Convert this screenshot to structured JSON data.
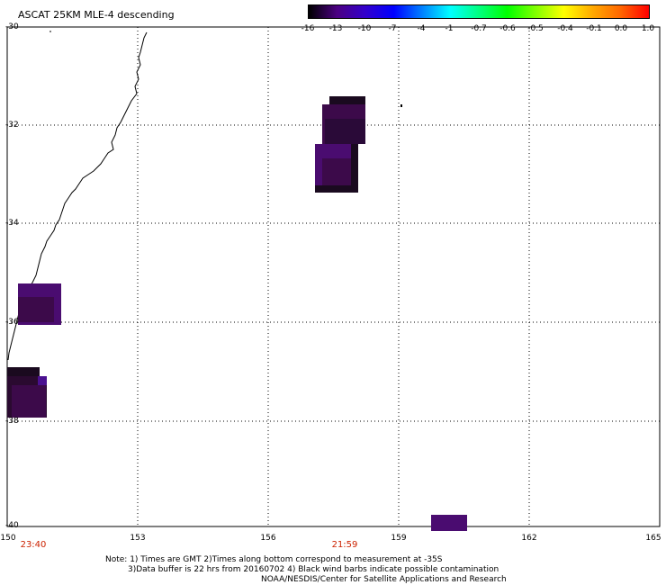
{
  "title": "ASCAT 25KM MLE-4 descending",
  "colorbar": {
    "labels": [
      "-16",
      "-13",
      "-10",
      "-7",
      "-4",
      "-1",
      "-0.7",
      "-0.6",
      "-0.5",
      "-0.4",
      "-0.1",
      "0.0",
      "1.0"
    ],
    "colors": [
      "#000000",
      "#4b0082",
      "#3300cc",
      "#0000ff",
      "#0080ff",
      "#00ffff",
      "#00ff80",
      "#00ff00",
      "#80ff00",
      "#ffff00",
      "#ffaa00",
      "#ff6600",
      "#ff0000"
    ]
  },
  "axes": {
    "lat_labels": [
      "-30",
      "-32",
      "-34",
      "-36",
      "-38",
      "-40"
    ],
    "lon_labels": [
      "150",
      "153",
      "156",
      "159",
      "162",
      "165"
    ]
  },
  "times": [
    "23:40",
    "21:59"
  ],
  "note": {
    "line1": "Note: 1) Times are GMT 2)Times along bottom correspond to measurement at -35S",
    "line2": "3)Data buffer is 22 hrs from 20160702 4) Black wind barbs indicate possible contamination",
    "line3": "NOAA/NESDIS/Center for Satellite Applications and Research"
  },
  "swath_colors": {
    "dark": "#1a0a1f",
    "mid": "#3c0a4a",
    "purple": "#4a0c70",
    "violet": "#4a1090"
  }
}
